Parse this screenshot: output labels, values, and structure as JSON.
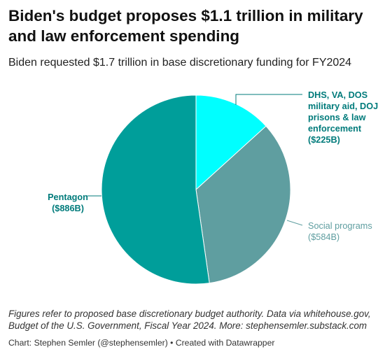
{
  "header": {
    "title_lines": [
      "Biden's budget proposes $1.1 trillion in military",
      "and law enforcement spending"
    ],
    "subtitle": "Biden requested $1.7 trillion in base discretionary funding for FY2024"
  },
  "chart_data": {
    "type": "pie",
    "categories": [
      "DHS, VA, DOS military aid, DOJ prisons & law enforcement",
      "Social programs",
      "Pentagon"
    ],
    "values": [
      225,
      584,
      886
    ],
    "unit": "billion USD",
    "colors": [
      "#00ffff",
      "#5f9ea0",
      "#009e9a"
    ],
    "label_colors": [
      "#007b7b",
      "#5f9ea0",
      "#007b7b"
    ],
    "labels": [
      {
        "name_lines": [
          "DHS, VA, DOS",
          "military aid, DOJ",
          "prisons & law",
          "enforcement"
        ],
        "value_text": "($225B)"
      },
      {
        "name_lines": [
          "Social programs"
        ],
        "value_text": "($584B)"
      },
      {
        "name_lines": [
          "Pentagon"
        ],
        "value_text": "($886B)"
      }
    ]
  },
  "footer": {
    "notes_lines": [
      "Figures refer to proposed base discretionary budget authority. Data via whitehouse.gov,",
      "Budget of the U.S. Government, Fiscal Year 2024. More: stephensemler.substack.com"
    ],
    "credit": "Chart: Stephen Semler (@stephensemler) • Created with Datawrapper"
  }
}
